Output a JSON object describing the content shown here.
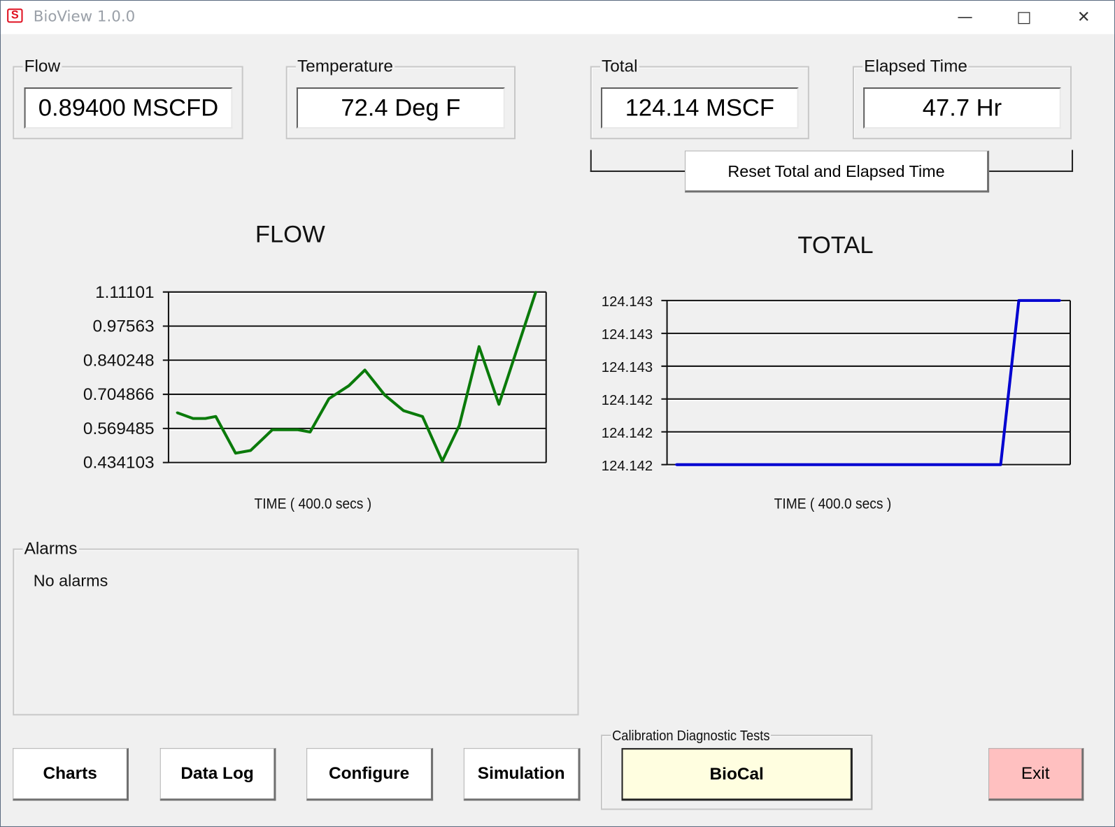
{
  "window": {
    "title": "BioView 1.0.0",
    "icon": "s-logo-icon",
    "controls": [
      "minimize",
      "maximize",
      "close"
    ]
  },
  "readouts": {
    "flow": {
      "label": "Flow",
      "value": "0.89400 MSCFD"
    },
    "temperature": {
      "label": "Temperature",
      "value": "72.4 Deg F"
    },
    "total": {
      "label": "Total",
      "value": "124.14 MSCF"
    },
    "elapsed": {
      "label": "Elapsed Time",
      "value": "47.7  Hr"
    }
  },
  "reset_button": "Reset Total and Elapsed Time",
  "alarms": {
    "label": "Alarms",
    "text": "No alarms"
  },
  "buttons": {
    "charts": "Charts",
    "data_log": "Data Log",
    "configure": "Configure",
    "simulation": "Simulation",
    "exit": "Exit"
  },
  "calibration": {
    "label": "Calibration Diagnostic Tests",
    "button": "BioCal"
  },
  "colors": {
    "flow_line": "#0a7a0a",
    "total_line": "#0000d0",
    "biocal_bg": "#fffee0",
    "exit_bg": "#ffc0c0",
    "background": "#f0f0f0"
  },
  "chart_data": [
    {
      "type": "line",
      "title": "FLOW",
      "xlabel": "TIME ( 400.0 secs )",
      "ylabel": "",
      "xlim": [
        0,
        400
      ],
      "ylim": [
        0.434103,
        1.11101
      ],
      "yticks": [
        "1.11101",
        "0.97563",
        "0.840248",
        "0.704866",
        "0.569485",
        "0.434103"
      ],
      "grid": true,
      "x": [
        9,
        26,
        39,
        50,
        71,
        87,
        110,
        137,
        150,
        170,
        191,
        208,
        229,
        249,
        269,
        290,
        308,
        329,
        350,
        389
      ],
      "values": [
        0.632,
        0.609,
        0.609,
        0.617,
        0.471,
        0.482,
        0.564,
        0.564,
        0.555,
        0.688,
        0.739,
        0.801,
        0.702,
        0.64,
        0.617,
        0.44,
        0.581,
        0.894,
        0.665,
        1.111
      ]
    },
    {
      "type": "line",
      "title": "TOTAL",
      "xlabel": "TIME ( 400.0 secs )",
      "ylabel": "",
      "xlim": [
        0,
        400
      ],
      "ylim": [
        124.142,
        124.143
      ],
      "yticks": [
        "124.143",
        "124.143",
        "124.143",
        "124.142",
        "124.142",
        "124.142"
      ],
      "grid": true,
      "x": [
        9,
        331,
        349,
        390
      ],
      "values": [
        124.142,
        124.142,
        124.143,
        124.143
      ]
    }
  ]
}
